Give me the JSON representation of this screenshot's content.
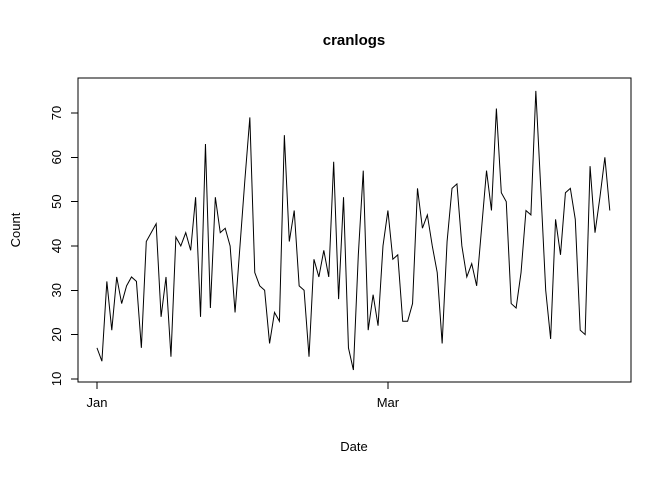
{
  "chart_data": {
    "type": "line",
    "title": "cranlogs",
    "xlabel": "Date",
    "ylabel": "Count",
    "grid": false,
    "legend": "none",
    "series_color": "#000000",
    "background_color": "#ffffff",
    "y_ticks": [
      10,
      20,
      30,
      40,
      50,
      60,
      70
    ],
    "x_ticks": [
      {
        "label": "Jan",
        "day": 0
      },
      {
        "label": "Mar",
        "day": 59
      }
    ],
    "ylim": [
      9.3,
      77.9
    ],
    "xlim_days": [
      -3.85,
      108.3
    ],
    "x_unit": "day",
    "n_points": 105,
    "values": [
      17,
      14,
      32,
      21,
      33,
      27,
      31,
      33,
      32,
      17,
      41,
      43,
      45,
      24,
      33,
      15,
      42,
      40,
      43,
      39,
      51,
      24,
      63,
      26,
      51,
      43,
      44,
      40,
      25,
      40,
      55,
      69,
      34,
      31,
      30,
      18,
      25,
      23,
      65,
      41,
      48,
      31,
      30,
      15,
      37,
      33,
      39,
      33,
      59,
      28,
      51,
      17,
      12,
      38,
      57,
      21,
      29,
      22,
      40,
      48,
      37,
      38,
      23,
      23,
      27,
      53,
      44,
      47,
      40,
      34,
      18,
      41,
      53,
      54,
      40,
      33,
      36,
      31,
      44,
      57,
      48,
      71,
      52,
      50,
      27,
      26,
      34,
      48,
      47,
      75,
      53,
      30,
      19,
      46,
      38,
      52,
      53,
      46,
      21,
      20,
      58,
      43,
      51,
      60,
      48
    ]
  }
}
